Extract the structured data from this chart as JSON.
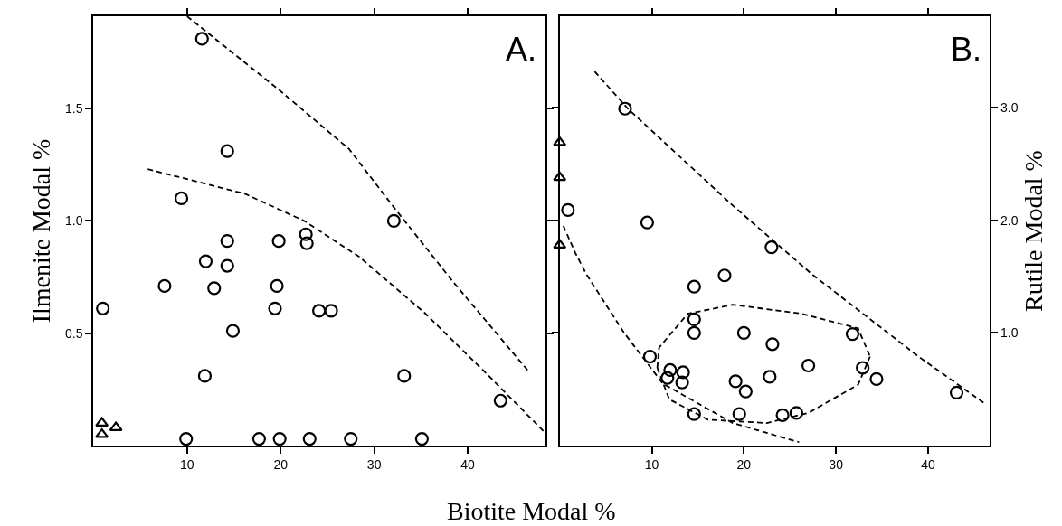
{
  "chart_data": [
    {
      "type": "scatter",
      "xlabel": "Biotite Modal %",
      "ylabel": "Ilmenite Modal %",
      "annotations": [
        "A."
      ],
      "xlim": [
        0,
        48.3
      ],
      "ylim": [
        0,
        1.91
      ],
      "xticks": [
        10,
        20,
        30,
        40
      ],
      "yticks": [
        0.5,
        {
          "value": 1.0,
          "label": "1.0"
        },
        1.5
      ],
      "series": [
        {
          "color": "#000000",
          "marker": "circle",
          "x": [
            11.6,
            14.3,
            14.3,
            19.8,
            22.8,
            32.1,
            14.3,
            12.9,
            19.6,
            19.4,
            24.1,
            11.9,
            33.2
          ],
          "values": [
            1.81,
            1.31,
            0.91,
            0.91,
            0.9,
            1.0,
            0.8,
            0.7,
            0.71,
            0.61,
            0.6,
            0.31,
            0.31
          ]
        },
        {
          "color": "#000000",
          "marker": "circle",
          "x": [
            9.4,
            22.7,
            12.0,
            7.6,
            1.0,
            14.9,
            25.4,
            43.5,
            9.9,
            17.7,
            19.9,
            23.1,
            27.5,
            35.1
          ],
          "values": [
            1.1,
            0.94,
            0.82,
            0.71,
            0.61,
            0.51,
            0.6,
            0.2,
            0.03,
            0.03,
            0.03,
            0.03,
            0.03,
            0.03
          ]
        },
        {
          "color": "#000000",
          "marker": "triangle",
          "x": [
            0.9,
            2.4,
            0.9
          ],
          "values": [
            0.1,
            0.08,
            0.05
          ]
        },
        {
          "type": "line",
          "color": "#000000",
          "marker": "none",
          "line_style": "dashed",
          "x": [
            10.0,
            19.9,
            27.3,
            32.1,
            38.4,
            46.5
          ],
          "values": [
            1.91,
            1.58,
            1.32,
            1.06,
            0.73,
            0.33
          ]
        },
        {
          "type": "line",
          "color": "#000000",
          "marker": "none",
          "line_style": "dashed",
          "x": [
            5.8,
            16.2,
            22.5,
            28.4,
            35.4,
            42.0,
            48.2
          ],
          "values": [
            1.23,
            1.12,
            1.0,
            0.84,
            0.59,
            0.32,
            0.06
          ]
        }
      ]
    },
    {
      "type": "scatter",
      "y2label": "Rutile Modal %",
      "annotations": [
        "B."
      ],
      "xlim": [
        0,
        46.7
      ],
      "y2lim": [
        0,
        3.81
      ],
      "xticks": [
        10,
        20,
        30,
        40
      ],
      "y2ticks": [
        {
          "value": 1.0,
          "label": "1.0"
        },
        {
          "value": 2.0,
          "label": "2.0"
        },
        {
          "value": 3.0,
          "label": "3.0"
        }
      ],
      "series": [
        {
          "axis": "y2",
          "color": "#000000",
          "marker": "circle",
          "x": [
            14.6,
            14.6,
            31.8,
            32.9,
            12.0,
            11.7,
            13.3,
            19.1,
            20.2,
            22.8,
            14.6,
            19.5,
            24.2
          ],
          "values": [
            1.12,
            1.0,
            0.99,
            0.69,
            0.67,
            0.6,
            0.56,
            0.57,
            0.48,
            0.61,
            0.28,
            0.28,
            0.27
          ]
        },
        {
          "axis": "y2",
          "color": "#000000",
          "marker": "circle",
          "x": [
            7.1,
            9.5,
            23.0,
            0.9,
            14.6,
            17.9,
            20.0,
            23.1,
            27.0,
            34.4,
            43.1,
            9.8,
            13.4,
            25.7
          ],
          "values": [
            2.99,
            1.98,
            1.76,
            2.09,
            1.41,
            1.51,
            1.0,
            0.9,
            0.71,
            0.59,
            0.47,
            0.79,
            0.65,
            0.29
          ]
        },
        {
          "axis": "y2",
          "color": "#000000",
          "marker": "triangle",
          "x": [
            0,
            0,
            0
          ],
          "values": [
            2.69,
            2.38,
            1.78
          ]
        },
        {
          "axis": "y2",
          "type": "line",
          "color": "#000000",
          "marker": "none",
          "line_style": "dashed",
          "x": [
            3.8,
            7.4,
            18.8,
            27.4,
            38.8,
            46.2
          ],
          "values": [
            3.32,
            2.99,
            2.13,
            1.52,
            0.8,
            0.37
          ]
        },
        {
          "axis": "y2",
          "type": "line",
          "color": "#000000",
          "marker": "none",
          "line_style": "dashed",
          "x": [
            0.4,
            1.7,
            2.9,
            7.0,
            11.2,
            18.8,
            26.0
          ],
          "values": [
            1.95,
            1.71,
            1.52,
            1.0,
            0.55,
            0.2,
            0.03
          ]
        },
        {
          "axis": "y2",
          "type": "line",
          "color": "#000000",
          "marker": "none",
          "line_style": "dashed",
          "x": [
            10.6,
            10.8,
            13.9,
            18.8,
            26.3,
            32.4,
            33.7
          ],
          "values": [
            0.69,
            0.87,
            1.17,
            1.25,
            1.17,
            1.04,
            0.79
          ]
        },
        {
          "axis": "y2",
          "type": "line",
          "color": "#000000",
          "marker": "none",
          "line_style": "dashed",
          "x": [
            10.6,
            11.9,
            16.1,
            22.5,
            27.0,
            32.4,
            33.7
          ],
          "values": [
            0.69,
            0.41,
            0.23,
            0.2,
            0.29,
            0.54,
            0.79
          ]
        }
      ]
    }
  ]
}
